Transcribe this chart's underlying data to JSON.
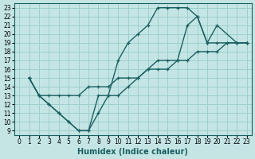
{
  "xlabel": "Humidex (Indice chaleur)",
  "bg_color": "#c5e5e5",
  "grid_color": "#9ecece",
  "line_color": "#1a6060",
  "xlim": [
    -0.5,
    23.5
  ],
  "ylim": [
    8.5,
    23.5
  ],
  "yticks": [
    9,
    10,
    11,
    12,
    13,
    14,
    15,
    16,
    17,
    18,
    19,
    20,
    21,
    22,
    23
  ],
  "xticks": [
    0,
    1,
    2,
    3,
    4,
    5,
    6,
    7,
    8,
    9,
    10,
    11,
    12,
    13,
    14,
    15,
    16,
    17,
    18,
    19,
    20,
    21,
    22,
    23
  ],
  "curve1_x": [
    1,
    2,
    3,
    4,
    5,
    6,
    7,
    8,
    9,
    10,
    11,
    12,
    13,
    14,
    15,
    16,
    17,
    18,
    19,
    20,
    22,
    23
  ],
  "curve1_y": [
    15,
    13,
    12,
    11,
    10,
    9,
    9,
    11,
    13,
    17,
    19,
    20,
    21,
    23,
    23,
    23,
    23,
    22,
    19,
    21,
    19,
    19
  ],
  "curve2_x": [
    1,
    2,
    3,
    4,
    5,
    6,
    7,
    8,
    9,
    10,
    11,
    12,
    13,
    14,
    15,
    16,
    17,
    18,
    19,
    20,
    21,
    22,
    23
  ],
  "curve2_y": [
    15,
    13,
    13,
    13,
    13,
    13,
    14,
    14,
    14,
    15,
    15,
    15,
    16,
    16,
    16,
    17,
    17,
    18,
    18,
    18,
    19,
    19,
    19
  ],
  "curve3_x": [
    1,
    2,
    3,
    4,
    5,
    6,
    7,
    8,
    9,
    10,
    11,
    12,
    13,
    14,
    15,
    16,
    17,
    18,
    19,
    20,
    21,
    22,
    23
  ],
  "curve3_y": [
    15,
    13,
    12,
    11,
    10,
    9,
    9,
    13,
    13,
    13,
    14,
    15,
    16,
    17,
    17,
    17,
    21,
    22,
    19,
    19,
    19,
    19,
    19
  ]
}
